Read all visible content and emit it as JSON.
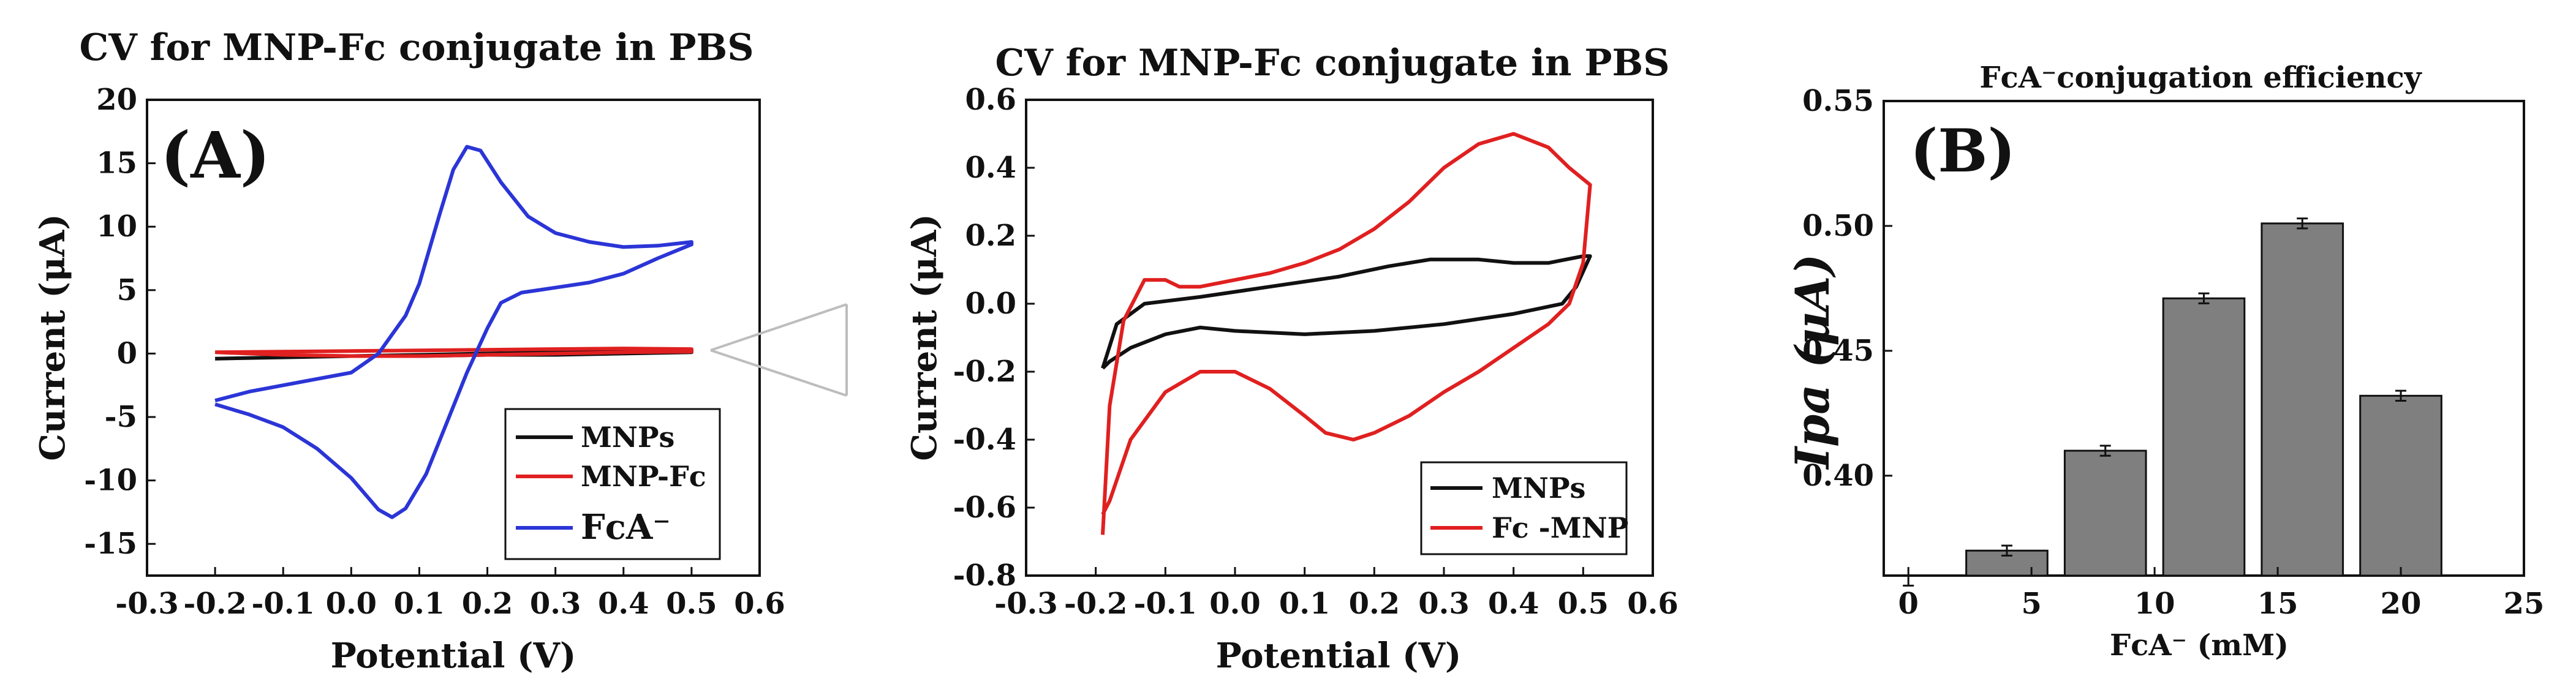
{
  "chart_data": [
    {
      "id": "A",
      "type": "line",
      "title": "CV for MNP-Fc  conjugate in PBS",
      "panel_label": "(A)",
      "xlabel": "Potential (V)",
      "ylabel": "Current (μA)",
      "xlim": [
        -0.3,
        0.6
      ],
      "ylim": [
        -17.5,
        20
      ],
      "xticks": [
        -0.3,
        -0.2,
        -0.1,
        0.0,
        0.1,
        0.2,
        0.3,
        0.4,
        0.5,
        0.6
      ],
      "xtick_labels": [
        "-0.3",
        "-0.2",
        "-0.1",
        "0.0",
        "0.1",
        "0.2",
        "0.3",
        "0.4",
        "0.5",
        "0.6"
      ],
      "yticks": [
        -15,
        -10,
        -5,
        0,
        5,
        10,
        15,
        20
      ],
      "ytick_labels": [
        "-15",
        "-10",
        "-5",
        "0",
        "5",
        "10",
        "15",
        "20"
      ],
      "legend_position": "bottom-right",
      "series": [
        {
          "name": "MNPs",
          "color": "#111111",
          "points": [
            [
              -0.2,
              -0.4
            ],
            [
              -0.1,
              -0.3
            ],
            [
              0.0,
              -0.2
            ],
            [
              0.1,
              -0.1
            ],
            [
              0.2,
              0.0
            ],
            [
              0.3,
              0.1
            ],
            [
              0.4,
              0.2
            ],
            [
              0.5,
              0.3
            ],
            [
              0.5,
              0.1
            ],
            [
              0.4,
              0.0
            ],
            [
              0.3,
              -0.1
            ],
            [
              0.2,
              -0.1
            ],
            [
              0.1,
              -0.2
            ],
            [
              0.0,
              -0.2
            ],
            [
              -0.1,
              -0.3
            ],
            [
              -0.2,
              -0.4
            ]
          ]
        },
        {
          "name": "MNP-Fc",
          "color": "#e02020",
          "points": [
            [
              -0.2,
              0.1
            ],
            [
              -0.1,
              0.15
            ],
            [
              0.0,
              0.2
            ],
            [
              0.1,
              0.25
            ],
            [
              0.2,
              0.3
            ],
            [
              0.3,
              0.35
            ],
            [
              0.4,
              0.4
            ],
            [
              0.5,
              0.35
            ],
            [
              0.5,
              0.15
            ],
            [
              0.4,
              0.1
            ],
            [
              0.3,
              0.0
            ],
            [
              0.2,
              -0.1
            ],
            [
              0.1,
              -0.2
            ],
            [
              0.0,
              -0.2
            ],
            [
              -0.1,
              -0.1
            ],
            [
              -0.2,
              0.1
            ]
          ]
        },
        {
          "name": "FcA⁻",
          "color": "#2b35d6",
          "points": [
            [
              -0.2,
              -3.7
            ],
            [
              -0.15,
              -3.0
            ],
            [
              -0.1,
              -2.5
            ],
            [
              -0.05,
              -2.0
            ],
            [
              0.0,
              -1.5
            ],
            [
              0.04,
              0.0
            ],
            [
              0.08,
              3.0
            ],
            [
              0.1,
              5.5
            ],
            [
              0.13,
              11.0
            ],
            [
              0.15,
              14.5
            ],
            [
              0.17,
              16.3
            ],
            [
              0.19,
              16.0
            ],
            [
              0.22,
              13.5
            ],
            [
              0.26,
              10.8
            ],
            [
              0.3,
              9.5
            ],
            [
              0.35,
              8.8
            ],
            [
              0.4,
              8.4
            ],
            [
              0.45,
              8.5
            ],
            [
              0.5,
              8.8
            ],
            [
              0.5,
              8.6
            ],
            [
              0.45,
              7.5
            ],
            [
              0.4,
              6.3
            ],
            [
              0.35,
              5.6
            ],
            [
              0.3,
              5.2
            ],
            [
              0.25,
              4.8
            ],
            [
              0.22,
              4.0
            ],
            [
              0.2,
              2.0
            ],
            [
              0.17,
              -1.5
            ],
            [
              0.14,
              -5.5
            ],
            [
              0.11,
              -9.5
            ],
            [
              0.08,
              -12.2
            ],
            [
              0.06,
              -12.9
            ],
            [
              0.04,
              -12.3
            ],
            [
              0.0,
              -9.8
            ],
            [
              -0.05,
              -7.5
            ],
            [
              -0.1,
              -5.8
            ],
            [
              -0.15,
              -4.8
            ],
            [
              -0.2,
              -4.0
            ]
          ]
        }
      ]
    },
    {
      "id": "inset",
      "type": "line",
      "title": "CV for MNP-Fc  conjugate in PBS",
      "xlabel": "Potential (V)",
      "ylabel": "Current (μA)",
      "xlim": [
        -0.3,
        0.6
      ],
      "ylim": [
        -0.8,
        0.6
      ],
      "xticks": [
        -0.3,
        -0.2,
        -0.1,
        0.0,
        0.1,
        0.2,
        0.3,
        0.4,
        0.5,
        0.6
      ],
      "xtick_labels": [
        "-0.3",
        "-0.2",
        "-0.1",
        "0.0",
        "0.1",
        "0.2",
        "0.3",
        "0.4",
        "0.5",
        "0.6"
      ],
      "yticks": [
        -0.8,
        -0.6,
        -0.4,
        -0.2,
        0.0,
        0.2,
        0.4,
        0.6
      ],
      "ytick_labels": [
        "-0.8",
        "-0.6",
        "-0.4",
        "-0.2",
        "0.0",
        "0.2",
        "0.4",
        "0.6"
      ],
      "legend_position": "bottom-right",
      "series": [
        {
          "name": "MNPs",
          "color": "#111111",
          "points": [
            [
              -0.19,
              -0.19
            ],
            [
              -0.17,
              -0.06
            ],
            [
              -0.13,
              0.0
            ],
            [
              -0.05,
              0.02
            ],
            [
              0.05,
              0.05
            ],
            [
              0.15,
              0.08
            ],
            [
              0.22,
              0.11
            ],
            [
              0.28,
              0.13
            ],
            [
              0.35,
              0.13
            ],
            [
              0.4,
              0.12
            ],
            [
              0.45,
              0.12
            ],
            [
              0.5,
              0.14
            ],
            [
              0.51,
              0.14
            ],
            [
              0.49,
              0.05
            ],
            [
              0.47,
              0.0
            ],
            [
              0.4,
              -0.03
            ],
            [
              0.3,
              -0.06
            ],
            [
              0.2,
              -0.08
            ],
            [
              0.1,
              -0.09
            ],
            [
              0.0,
              -0.08
            ],
            [
              -0.05,
              -0.07
            ],
            [
              -0.1,
              -0.09
            ],
            [
              -0.15,
              -0.13
            ],
            [
              -0.18,
              -0.17
            ],
            [
              -0.19,
              -0.19
            ]
          ]
        },
        {
          "name": "Fc -MNP",
          "color": "#e02020",
          "points": [
            [
              -0.19,
              -0.68
            ],
            [
              -0.18,
              -0.3
            ],
            [
              -0.16,
              -0.05
            ],
            [
              -0.13,
              0.07
            ],
            [
              -0.1,
              0.07
            ],
            [
              -0.08,
              0.05
            ],
            [
              -0.05,
              0.05
            ],
            [
              0.0,
              0.07
            ],
            [
              0.05,
              0.09
            ],
            [
              0.1,
              0.12
            ],
            [
              0.15,
              0.16
            ],
            [
              0.2,
              0.22
            ],
            [
              0.25,
              0.3
            ],
            [
              0.3,
              0.4
            ],
            [
              0.35,
              0.47
            ],
            [
              0.4,
              0.5
            ],
            [
              0.45,
              0.46
            ],
            [
              0.48,
              0.4
            ],
            [
              0.51,
              0.35
            ],
            [
              0.5,
              0.12
            ],
            [
              0.48,
              0.0
            ],
            [
              0.45,
              -0.06
            ],
            [
              0.4,
              -0.13
            ],
            [
              0.35,
              -0.2
            ],
            [
              0.3,
              -0.26
            ],
            [
              0.25,
              -0.33
            ],
            [
              0.2,
              -0.38
            ],
            [
              0.17,
              -0.4
            ],
            [
              0.13,
              -0.38
            ],
            [
              0.1,
              -0.33
            ],
            [
              0.05,
              -0.25
            ],
            [
              0.0,
              -0.2
            ],
            [
              -0.05,
              -0.2
            ],
            [
              -0.1,
              -0.26
            ],
            [
              -0.15,
              -0.4
            ],
            [
              -0.18,
              -0.58
            ],
            [
              -0.19,
              -0.62
            ]
          ]
        }
      ]
    },
    {
      "id": "B",
      "type": "bar",
      "title": "FcA⁻conjugation efficiency",
      "panel_label": "(B)",
      "xlabel": "FcA⁻ (mM)",
      "ylabel": "Ipa (μA)",
      "xlim": [
        -1,
        25
      ],
      "ylim": [
        0.36,
        0.55
      ],
      "xticks": [
        0,
        5,
        10,
        15,
        20,
        25
      ],
      "xtick_labels": [
        "0",
        "5",
        "10",
        "15",
        "20",
        "25"
      ],
      "yticks": [
        0.4,
        0.45,
        0.5,
        0.55
      ],
      "ytick_labels": [
        "0.40",
        "0.45",
        "0.50",
        "0.55"
      ],
      "bar_color": "#7f7f7f",
      "bar_width": 3.3,
      "x": [
        0,
        4,
        8,
        12,
        16,
        20
      ],
      "values": [
        0.358,
        0.37,
        0.41,
        0.471,
        0.501,
        0.432
      ],
      "errors": [
        0.002,
        0.002,
        0.002,
        0.002,
        0.002,
        0.002
      ]
    }
  ]
}
